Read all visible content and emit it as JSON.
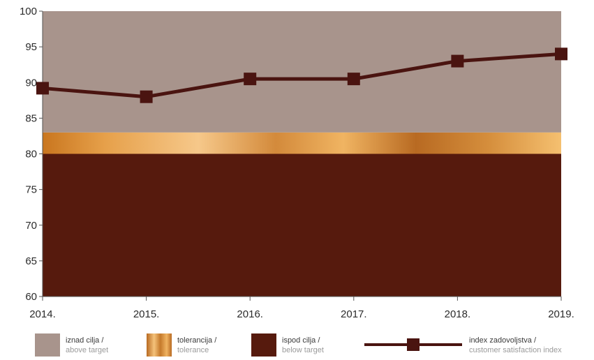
{
  "chart_data": {
    "type": "line",
    "categories": [
      "2014.",
      "2015.",
      "2016.",
      "2017.",
      "2018.",
      "2019."
    ],
    "series": [
      {
        "name": "index zadovoljstva / customer satisfaction index",
        "values": [
          89.2,
          88.0,
          90.5,
          90.5,
          93.0,
          94.0
        ]
      }
    ],
    "yticks": [
      60,
      65,
      70,
      75,
      80,
      85,
      90,
      95,
      100
    ],
    "ylim": [
      60,
      100
    ],
    "bands": [
      {
        "name": "ispod cilja / below target",
        "from": 60,
        "to": 80,
        "color": "#561a0d"
      },
      {
        "name": "tolerancija / tolerance",
        "from": 80,
        "to": 83,
        "color": "#d98f3a"
      },
      {
        "name": "iznad cilja / above target",
        "from": 83,
        "to": 100,
        "color": "#a8948c"
      }
    ],
    "line_color": "#4a1410",
    "grid": false,
    "legend_position": "bottom"
  },
  "legend": {
    "above_line1": "iznad cilja /",
    "above_line2": "above target",
    "tolerance_line1": "tolerancija /",
    "tolerance_line2": "tolerance",
    "below_line1": "ispod cilja /",
    "below_line2": "below target",
    "index_line1": "index zadovoljstva /",
    "index_line2": "customer satisfaction index"
  }
}
